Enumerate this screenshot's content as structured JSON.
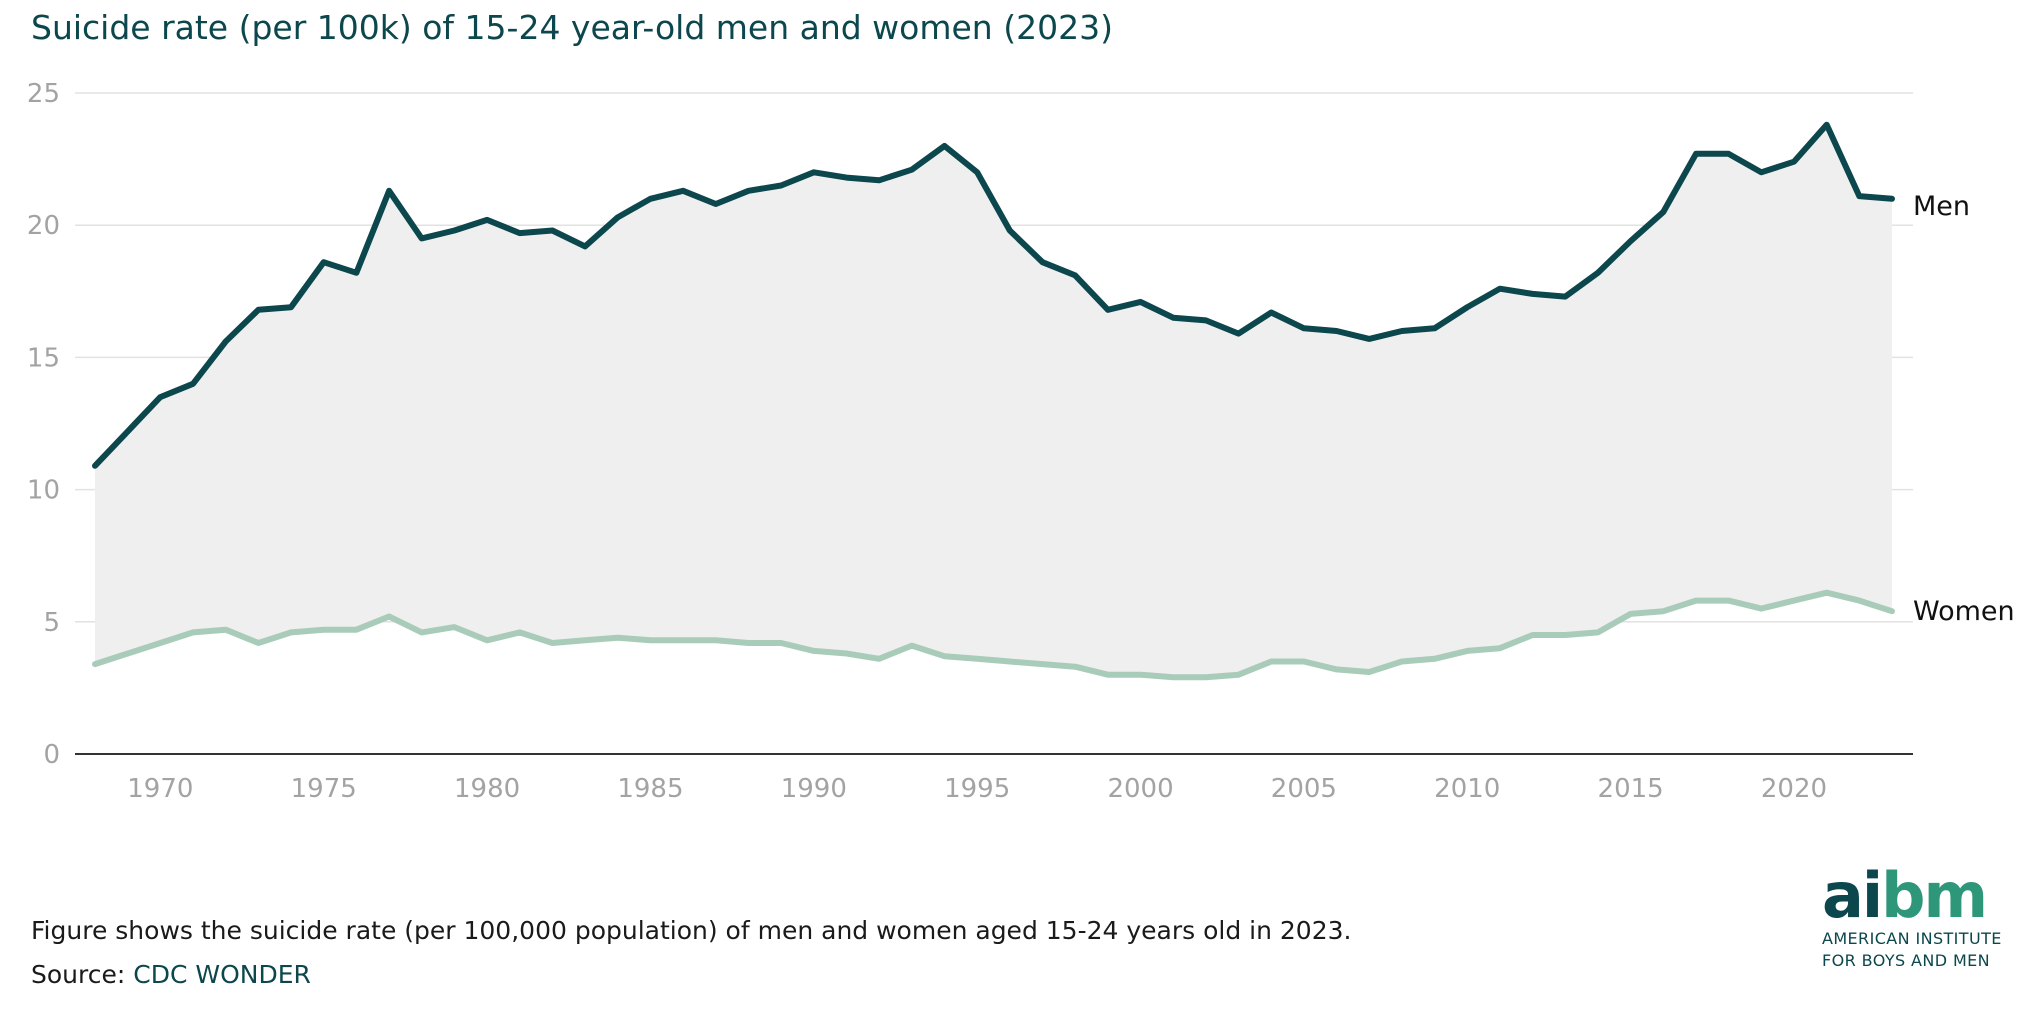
{
  "chart_data": {
    "type": "area",
    "title": "Suicide rate (per 100k) of 15-24 year-old men and women (2023)",
    "xlabel": "",
    "ylabel": "",
    "xlim": [
      1968,
      2023
    ],
    "ylim": [
      0,
      25
    ],
    "x_ticks": [
      "1970",
      "1975",
      "1980",
      "1985",
      "1990",
      "1995",
      "2000",
      "2005",
      "2010",
      "2015",
      "2020"
    ],
    "y_ticks": [
      "0",
      "5",
      "10",
      "15",
      "20",
      "25"
    ],
    "grid": true,
    "legend": "direct labels at right end of lines",
    "x": [
      1968,
      1969,
      1970,
      1971,
      1972,
      1973,
      1974,
      1975,
      1976,
      1977,
      1978,
      1979,
      1980,
      1981,
      1982,
      1983,
      1984,
      1985,
      1986,
      1987,
      1988,
      1989,
      1990,
      1991,
      1992,
      1993,
      1994,
      1995,
      1996,
      1997,
      1998,
      1999,
      2000,
      2001,
      2002,
      2003,
      2004,
      2005,
      2006,
      2007,
      2008,
      2009,
      2010,
      2011,
      2012,
      2013,
      2014,
      2015,
      2016,
      2017,
      2018,
      2019,
      2020,
      2021,
      2022,
      2023
    ],
    "series": [
      {
        "name": "Men",
        "color": "#0b474c",
        "values": [
          10.9,
          12.2,
          13.5,
          14.0,
          15.6,
          16.8,
          16.9,
          18.6,
          18.2,
          21.3,
          19.5,
          19.8,
          20.2,
          19.7,
          19.8,
          19.2,
          20.3,
          21.0,
          21.3,
          20.8,
          21.3,
          21.5,
          22.0,
          21.8,
          21.7,
          22.1,
          23.0,
          22.0,
          19.8,
          18.6,
          18.1,
          16.8,
          17.1,
          16.5,
          16.4,
          15.9,
          16.7,
          16.1,
          16.0,
          15.7,
          16.0,
          16.1,
          16.9,
          17.6,
          17.4,
          17.3,
          18.2,
          19.4,
          20.5,
          22.7,
          22.7,
          22.0,
          22.4,
          23.8,
          21.1,
          21.0
        ]
      },
      {
        "name": "Women",
        "color": "#a9ccba",
        "values": [
          3.4,
          3.8,
          4.2,
          4.6,
          4.7,
          4.2,
          4.6,
          4.7,
          4.7,
          5.2,
          4.6,
          4.8,
          4.3,
          4.6,
          4.2,
          4.3,
          4.4,
          4.3,
          4.3,
          4.3,
          4.2,
          4.2,
          3.9,
          3.8,
          3.6,
          4.1,
          3.7,
          3.6,
          3.5,
          3.4,
          3.3,
          3.0,
          3.0,
          2.9,
          2.9,
          3.0,
          3.5,
          3.5,
          3.2,
          3.1,
          3.5,
          3.6,
          3.9,
          4.0,
          4.5,
          4.5,
          4.6,
          5.3,
          5.4,
          5.8,
          5.8,
          5.5,
          5.8,
          6.1,
          5.8,
          5.4
        ]
      }
    ],
    "fill_between_color": "#efefef",
    "gridline_color": "#e2e2e2",
    "axis_color": "#333333"
  },
  "footnote": "Figure shows the suicide rate (per 100,000 population) of men and women aged 15-24 years old in 2023.",
  "source": {
    "label": "Source:",
    "link_text": "CDC WONDER"
  },
  "logo": {
    "word_dark": "ai",
    "word_accent": "bm",
    "tagline_line1": "AMERICAN INSTITUTE",
    "tagline_line2": "FOR BOYS AND MEN",
    "dark_color": "#0b474c",
    "accent_color": "#2f9779"
  }
}
